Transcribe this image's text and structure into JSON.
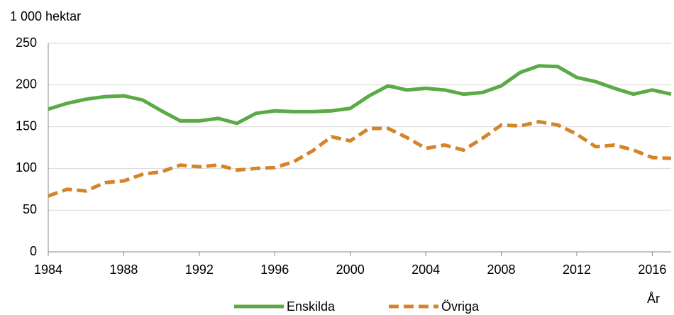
{
  "chart_data": {
    "type": "line",
    "y_label": "1 000 hektar",
    "x_label": "År",
    "x": [
      1984,
      1985,
      1986,
      1987,
      1988,
      1989,
      1990,
      1991,
      1992,
      1993,
      1994,
      1995,
      1996,
      1997,
      1998,
      1999,
      2000,
      2001,
      2002,
      2003,
      2004,
      2005,
      2006,
      2007,
      2008,
      2009,
      2010,
      2011,
      2012,
      2013,
      2014,
      2015,
      2016,
      2017
    ],
    "series": [
      {
        "name": "Enskilda",
        "color": "#5aaa46",
        "dashed": false,
        "values": [
          171,
          178,
          183,
          186,
          187,
          182,
          169,
          157,
          157,
          160,
          154,
          166,
          169,
          168,
          168,
          169,
          172,
          187,
          199,
          194,
          196,
          194,
          189,
          191,
          199,
          215,
          223,
          222,
          209,
          204,
          196,
          189,
          194,
          189
        ]
      },
      {
        "name": "Övriga",
        "color": "#d4852a",
        "dashed": true,
        "values": [
          67,
          75,
          73,
          83,
          85,
          93,
          96,
          104,
          102,
          104,
          98,
          100,
          101,
          108,
          121,
          138,
          133,
          148,
          148,
          137,
          124,
          128,
          122,
          136,
          152,
          151,
          156,
          152,
          141,
          126,
          128,
          122,
          113,
          112
        ]
      }
    ],
    "xlim": [
      1984,
      2017
    ],
    "xticks": [
      1984,
      1988,
      1992,
      1996,
      2000,
      2004,
      2008,
      2012,
      2016
    ],
    "ylim": [
      0,
      250
    ],
    "yticks": [
      0,
      50,
      100,
      150,
      200,
      250
    ],
    "grid": true,
    "legend": "bottom"
  }
}
